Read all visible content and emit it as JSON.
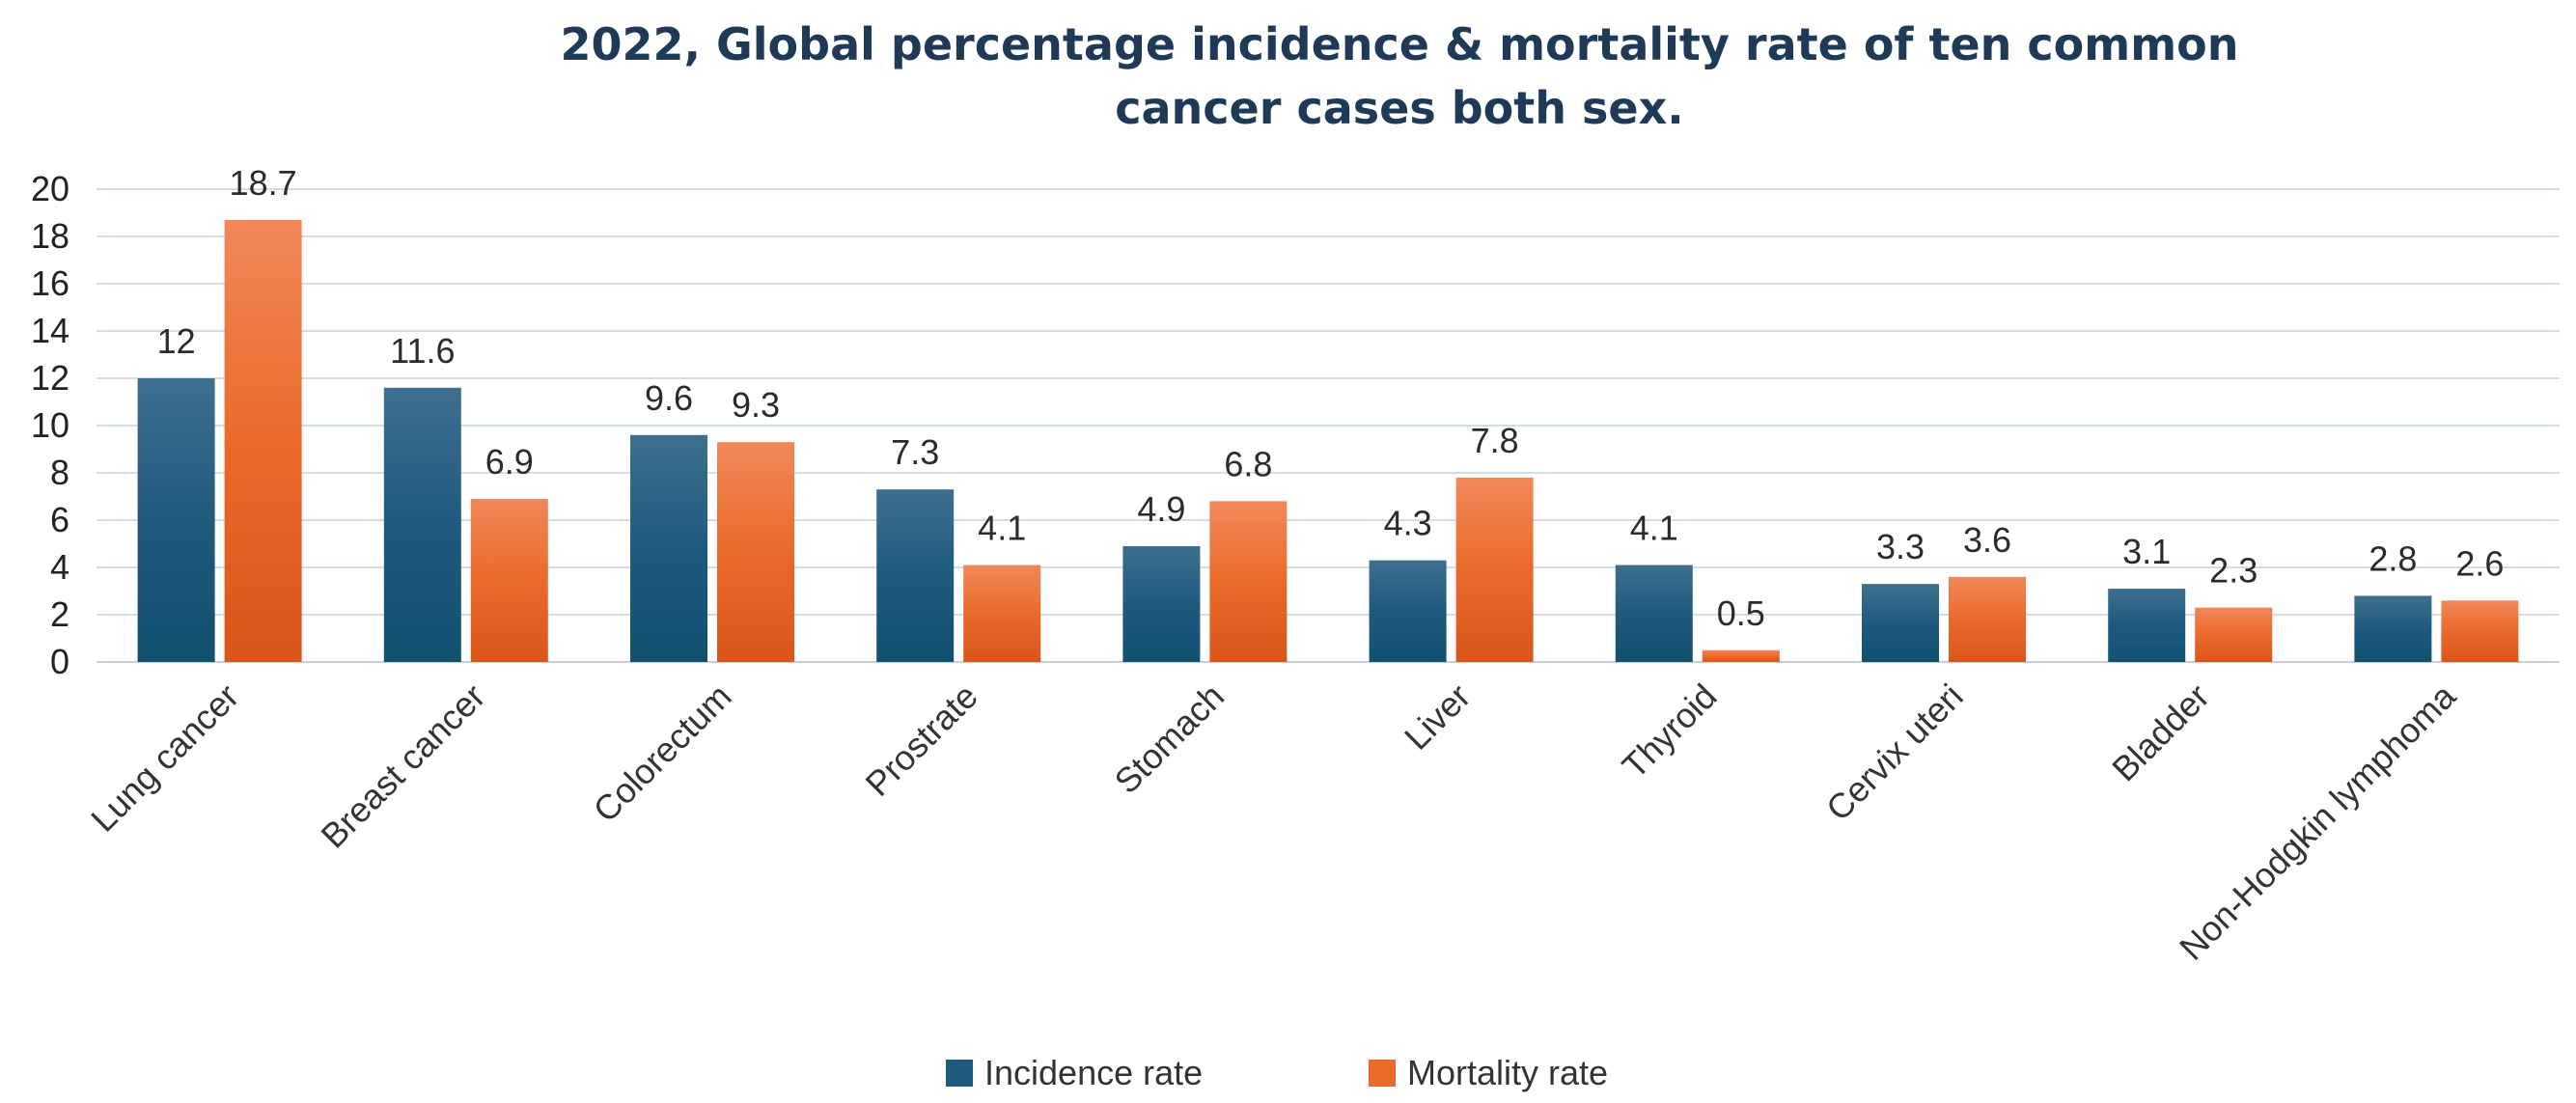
{
  "chart_data": {
    "type": "bar",
    "title_lines": [
      "2022, Global percentage incidence & mortality rate of ten common",
      "cancer cases both sex."
    ],
    "categories": [
      "Lung cancer",
      "Breast cancer",
      "Colorectum",
      "Prostrate",
      "Stomach",
      "Liver",
      "Thyroid",
      "Cervix uteri",
      "Bladder",
      "Non-Hodgkin lymphoma"
    ],
    "series": [
      {
        "name": "Incidence rate",
        "color": "#1f5a7e",
        "values": [
          12,
          11.6,
          9.6,
          7.3,
          4.9,
          4.3,
          4.1,
          3.3,
          3.1,
          2.8
        ]
      },
      {
        "name": "Mortality rate",
        "color": "#ea6a2a",
        "values": [
          18.7,
          6.9,
          9.3,
          4.1,
          6.8,
          7.8,
          0.5,
          3.6,
          2.3,
          2.6
        ]
      }
    ],
    "data_labels": [
      [
        "12",
        "11.6",
        "9.6",
        "7.3",
        "4.9",
        "4.3",
        "4.1",
        "3.3",
        "3.1",
        "2.8"
      ],
      [
        "18.7",
        "6.9",
        "9.3",
        "4.1",
        "6.8",
        "7.8",
        "0.5",
        "3.6",
        "2.3",
        "2.6"
      ]
    ],
    "ylim": [
      0,
      20
    ],
    "yticks": [
      "0",
      "2",
      "4",
      "6",
      "8",
      "10",
      "12",
      "14",
      "16",
      "18",
      "20"
    ],
    "grid": true,
    "legend_position": "bottom",
    "xlabel": "",
    "ylabel": ""
  }
}
